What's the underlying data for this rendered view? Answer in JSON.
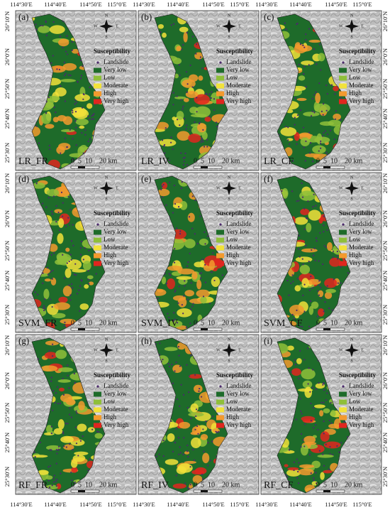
{
  "top_axis_labels": [
    "114°30′E",
    "114°40′E",
    "114°50′E",
    "115°0′E"
  ],
  "bottom_axis_labels": [
    "114°30′E",
    "114°40′E",
    "114°50′E",
    "115°0′E"
  ],
  "left_axis_labels": [
    "26°10′N",
    "26°0′N",
    "25°50′N",
    "25°40′N",
    "25°30′N"
  ],
  "right_axis_labels": [
    "26°10′N",
    "26°0′N",
    "25°50′N",
    "25°40′N",
    "25°30′N"
  ],
  "compass": {
    "N": "N",
    "S": "S",
    "E": "E",
    "W": "W"
  },
  "legend": {
    "title": "Susceptibility",
    "items": [
      {
        "label": "Landslide",
        "color": "#4b2a6b"
      },
      {
        "label": "Very low",
        "color": "#1e6b2a"
      },
      {
        "label": "Low",
        "color": "#8fbf3a"
      },
      {
        "label": "Moderate",
        "color": "#f2e23a"
      },
      {
        "label": "High",
        "color": "#f39a2e"
      },
      {
        "label": "Very high",
        "color": "#e0261f"
      }
    ]
  },
  "scale_bar": {
    "labels": [
      "0",
      "5",
      "10",
      "20 km"
    ]
  },
  "panels": [
    {
      "letter": "(a)",
      "name": "LR_FR"
    },
    {
      "letter": "(b)",
      "name": "LR_IV"
    },
    {
      "letter": "(c)",
      "name": "LR_CF"
    },
    {
      "letter": "(d)",
      "name": "SVM_FR"
    },
    {
      "letter": "(e)",
      "name": "SVM_IV"
    },
    {
      "letter": "(f)",
      "name": "SVM_CF"
    },
    {
      "letter": "(g)",
      "name": "RF_FR"
    },
    {
      "letter": "(h)",
      "name": "RF_IV"
    },
    {
      "letter": "(i)",
      "name": "RF_CF"
    }
  ]
}
